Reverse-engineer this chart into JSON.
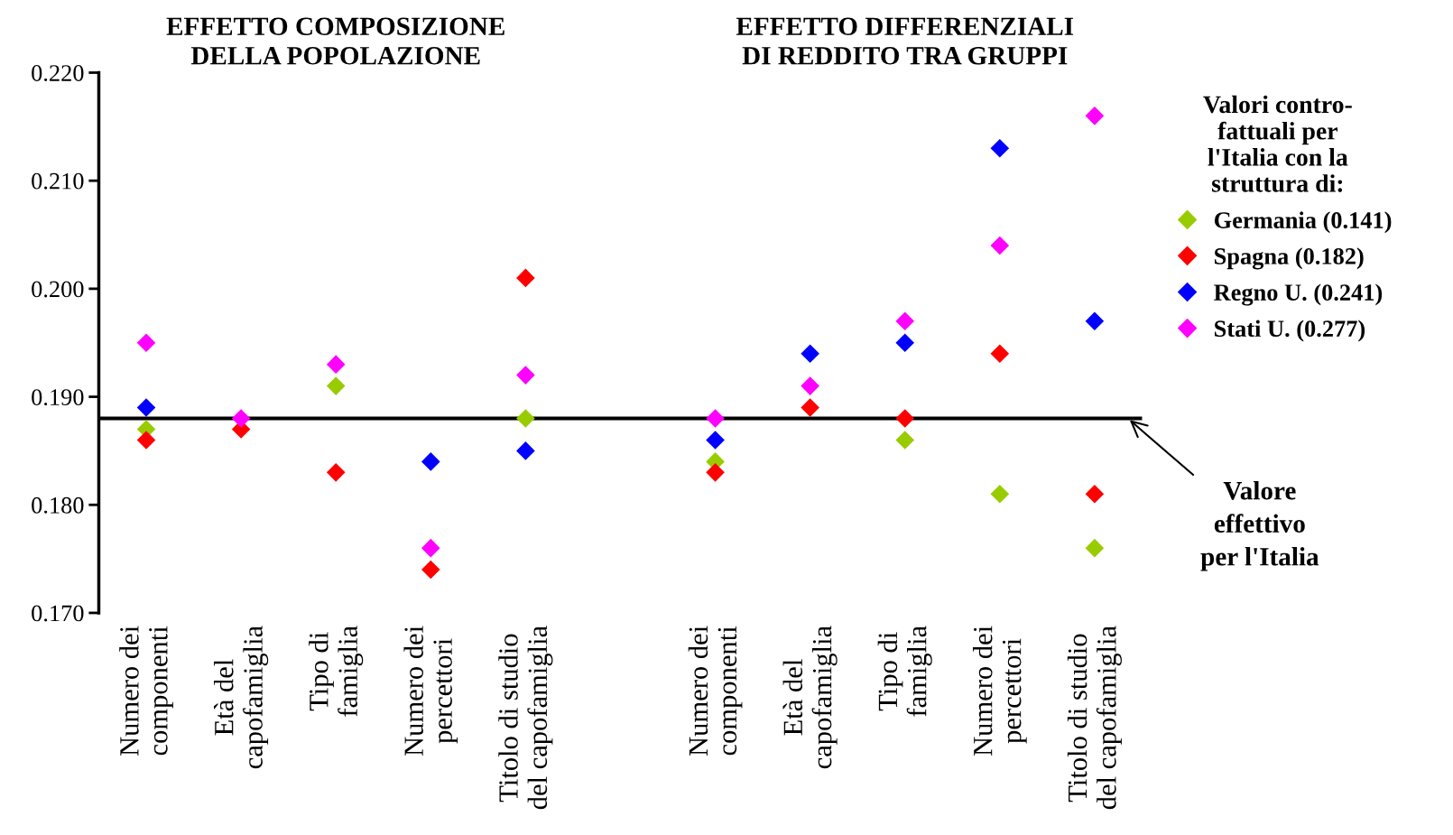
{
  "chart_data": {
    "type": "scatter",
    "annotations": [
      "EFFETTO COMPOSIZIONE\nDELLA POPOLAZIONE",
      "EFFETTO DIFFERENZIALI\nDI REDDITO TRA GRUPPI"
    ],
    "categories": [
      "Numero dei\ncomponenti",
      "Età del\ncapofamiglia",
      "Tipo di\nfamiglia",
      "Numero dei\npercettori",
      "Titolo di studio\ndel capofamiglia",
      null,
      "Numero dei\ncomponenti",
      "Età del\ncapofamiglia",
      "Tipo di\nfamiglia",
      "Numero dei\npercettori",
      "Titolo di studio\ndel capofamiglia"
    ],
    "series": [
      {
        "name": "Germania (0.141)",
        "color": "#99cc00",
        "values": [
          0.187,
          null,
          0.191,
          null,
          0.188,
          null,
          0.184,
          null,
          0.186,
          0.181,
          0.176
        ]
      },
      {
        "name": "Spagna (0.182)",
        "color": "#ff0000",
        "values": [
          0.186,
          0.187,
          0.183,
          0.174,
          0.201,
          null,
          0.183,
          0.189,
          0.188,
          0.194,
          0.181
        ]
      },
      {
        "name": "Regno U. (0.241)",
        "color": "#0000ff",
        "values": [
          0.189,
          null,
          null,
          0.184,
          0.185,
          null,
          0.186,
          0.194,
          0.195,
          0.213,
          0.197
        ]
      },
      {
        "name": "Stati U. (0.277)",
        "color": "#ff00ff",
        "values": [
          0.195,
          0.188,
          0.193,
          0.176,
          0.192,
          null,
          0.188,
          0.191,
          0.197,
          0.204,
          0.216
        ]
      }
    ],
    "legend_title": "Valori contro-\nfattuali per\nl'Italia con la\nstruttura di:",
    "legend": "right",
    "marker": "diamond",
    "grid": false,
    "ylim": [
      0.17,
      0.22
    ],
    "yticks": [
      {
        "value": 0.17,
        "label": "0.170"
      },
      {
        "value": 0.18,
        "label": "0.180"
      },
      {
        "value": 0.19,
        "label": "0.190"
      },
      {
        "value": 0.2,
        "label": "0.200"
      },
      {
        "value": 0.21,
        "label": "0.210"
      },
      {
        "value": 0.22,
        "label": "0.220"
      }
    ],
    "ref_lines": [
      {
        "axis": "y",
        "value": 0.188,
        "label": "Valore\neffettivo\nper l'Italia",
        "color": "#000000",
        "line_style": "solid"
      }
    ]
  }
}
